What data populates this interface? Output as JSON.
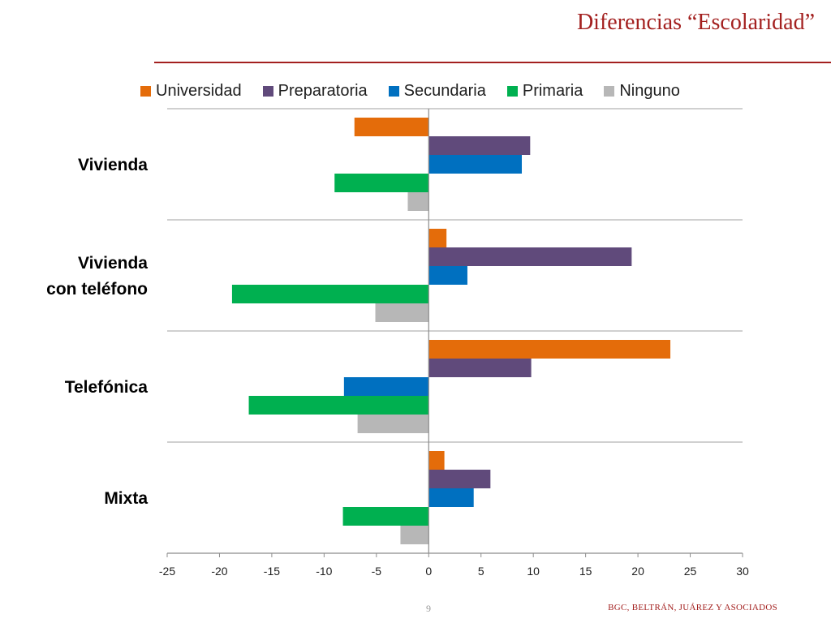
{
  "header": {
    "title": "Diferencias “Escolaridad”"
  },
  "footer": {
    "page_number": "9",
    "brand": "BGC, BELTRÁN, JUÁREZ Y ASOCIADOS"
  },
  "chart_data": {
    "type": "bar",
    "orientation": "horizontal",
    "title": "",
    "xlabel": "",
    "ylabel": "",
    "xlim": [
      -25,
      30
    ],
    "x_ticks": [
      "-25",
      "-20",
      "-15",
      "-10",
      "-5",
      "0",
      "5",
      "10",
      "15",
      "20",
      "25",
      "30"
    ],
    "grid": "horizontal separators between categories",
    "legend_position": "top",
    "categories": [
      "Vivienda",
      "Vivienda\ncon teléfono",
      "Telefónica",
      "Mixta"
    ],
    "series": [
      {
        "name": "Universidad",
        "color": "#e46c0a",
        "values": [
          -7.1,
          1.7,
          23.1,
          1.5
        ]
      },
      {
        "name": "Preparatoria",
        "color": "#604a7b",
        "values": [
          9.7,
          19.4,
          9.8,
          5.9
        ]
      },
      {
        "name": "Secundaria",
        "color": "#0070c0",
        "values": [
          8.9,
          3.7,
          -8.1,
          4.3
        ]
      },
      {
        "name": "Primaria",
        "color": "#00b050",
        "values": [
          -9.0,
          -18.8,
          -17.2,
          -8.2
        ]
      },
      {
        "name": "Ninguno",
        "color": "#b7b7b7",
        "values": [
          -2.0,
          -5.1,
          -6.8,
          -2.7
        ]
      }
    ]
  }
}
